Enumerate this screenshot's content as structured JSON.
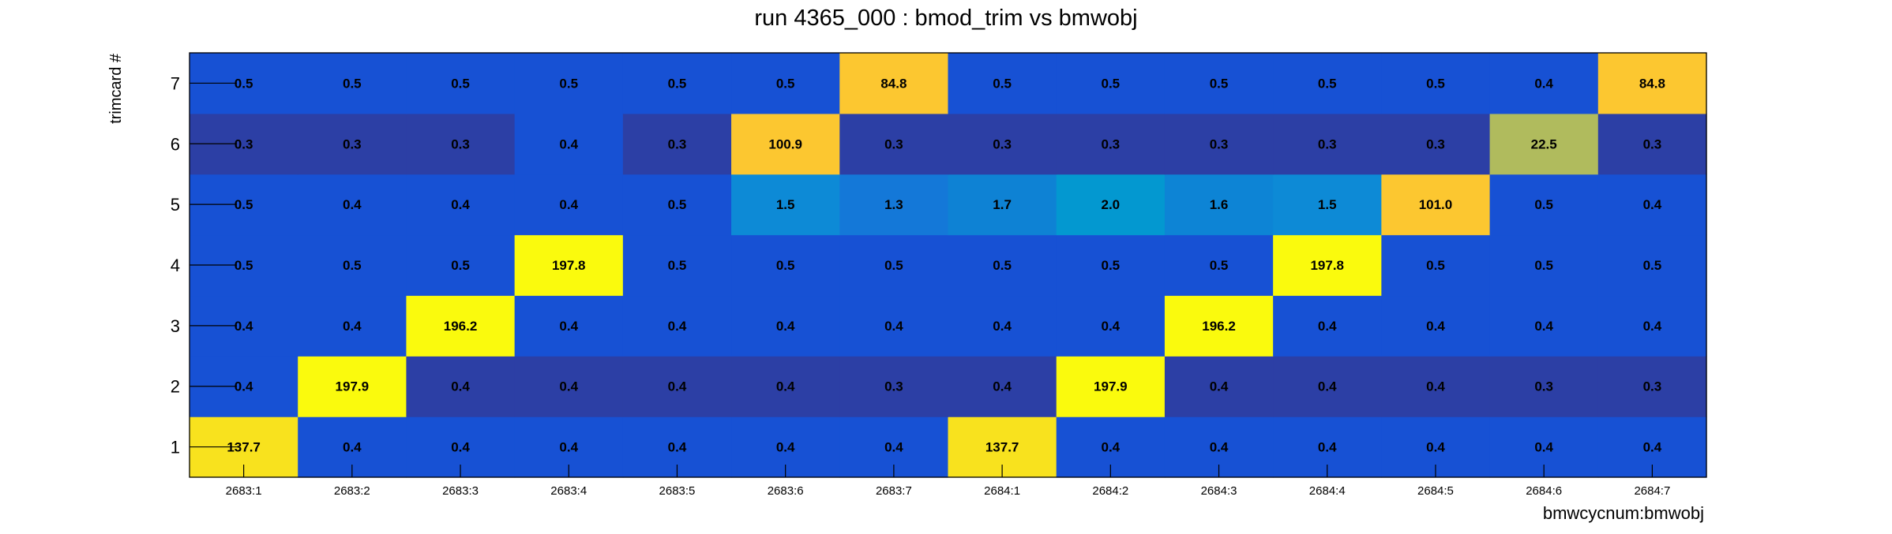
{
  "chart_data": {
    "type": "heatmap",
    "title": "run 4365_000 : bmod_trim vs bmwobj",
    "xlabel": "bmwcycnum:bmwobj",
    "ylabel": "trimcard #",
    "x_categories": [
      "2683:1",
      "2683:2",
      "2683:3",
      "2683:4",
      "2683:5",
      "2683:6",
      "2683:7",
      "2684:1",
      "2684:2",
      "2684:3",
      "2684:4",
      "2684:5",
      "2684:6",
      "2684:7"
    ],
    "y_categories": [
      "1",
      "2",
      "3",
      "4",
      "5",
      "6",
      "7"
    ],
    "values": [
      [
        137.7,
        0.4,
        0.4,
        0.4,
        0.4,
        0.4,
        0.4,
        137.7,
        0.4,
        0.4,
        0.4,
        0.4,
        0.4,
        0.4
      ],
      [
        0.4,
        197.9,
        0.4,
        0.4,
        0.4,
        0.4,
        0.3,
        0.4,
        197.9,
        0.4,
        0.4,
        0.4,
        0.3,
        0.3
      ],
      [
        0.4,
        0.4,
        196.2,
        0.4,
        0.4,
        0.4,
        0.4,
        0.4,
        0.4,
        196.2,
        0.4,
        0.4,
        0.4,
        0.4
      ],
      [
        0.5,
        0.5,
        0.5,
        197.8,
        0.5,
        0.5,
        0.5,
        0.5,
        0.5,
        0.5,
        197.8,
        0.5,
        0.5,
        0.5
      ],
      [
        0.5,
        0.4,
        0.4,
        0.4,
        0.5,
        1.5,
        1.3,
        1.7,
        2.0,
        1.6,
        1.5,
        101.0,
        0.5,
        0.4
      ],
      [
        0.3,
        0.3,
        0.3,
        0.4,
        0.3,
        100.9,
        0.3,
        0.3,
        0.3,
        0.3,
        0.3,
        0.3,
        22.5,
        0.3
      ],
      [
        0.5,
        0.5,
        0.5,
        0.5,
        0.5,
        0.5,
        84.8,
        0.5,
        0.5,
        0.5,
        0.5,
        0.5,
        0.4,
        84.8
      ]
    ],
    "cell_colors": [
      [
        "#f8e21e",
        "#1751d4",
        "#1751d4",
        "#1751d4",
        "#1751d4",
        "#1751d4",
        "#1751d4",
        "#f8e21e",
        "#1751d4",
        "#1751d4",
        "#1751d4",
        "#1751d4",
        "#1751d4",
        "#1751d4"
      ],
      [
        "#1751d4",
        "#fafa0d",
        "#2c3fa5",
        "#2c3fa5",
        "#2c3fa5",
        "#2c3fa5",
        "#2c3fa5",
        "#2c3fa5",
        "#fafa0d",
        "#2c3fa5",
        "#2c3fa5",
        "#2c3fa5",
        "#2c3fa5",
        "#2c3fa5"
      ],
      [
        "#1751d4",
        "#1751d4",
        "#fafa0d",
        "#1751d4",
        "#1751d4",
        "#1751d4",
        "#1751d4",
        "#1751d4",
        "#1751d4",
        "#fafa0d",
        "#1751d4",
        "#1751d4",
        "#1751d4",
        "#1751d4"
      ],
      [
        "#1751d4",
        "#1751d4",
        "#1751d4",
        "#fafa0d",
        "#1751d4",
        "#1751d4",
        "#1751d4",
        "#1751d4",
        "#1751d4",
        "#1751d4",
        "#fafa0d",
        "#1751d4",
        "#1751d4",
        "#1751d4"
      ],
      [
        "#1751d4",
        "#1751d4",
        "#1751d4",
        "#1751d4",
        "#1751d4",
        "#0d8ad6",
        "#1478d8",
        "#0e82d4",
        "#0398d0",
        "#0d84d5",
        "#0d8ad6",
        "#fcc730",
        "#1751d4",
        "#1751d4"
      ],
      [
        "#2c3fa5",
        "#2c3fa5",
        "#2c3fa5",
        "#1751d4",
        "#2c3fa5",
        "#fcc730",
        "#2c3fa5",
        "#2c3fa5",
        "#2c3fa5",
        "#2c3fa5",
        "#2c3fa5",
        "#2c3fa5",
        "#b0bb5d",
        "#2c3fa5"
      ],
      [
        "#1751d4",
        "#1751d4",
        "#1751d4",
        "#1751d4",
        "#1751d4",
        "#1751d4",
        "#fcc730",
        "#1751d4",
        "#1751d4",
        "#1751d4",
        "#1751d4",
        "#1751d4",
        "#1751d4",
        "#fcc730"
      ]
    ],
    "legend": false,
    "grid": false
  }
}
